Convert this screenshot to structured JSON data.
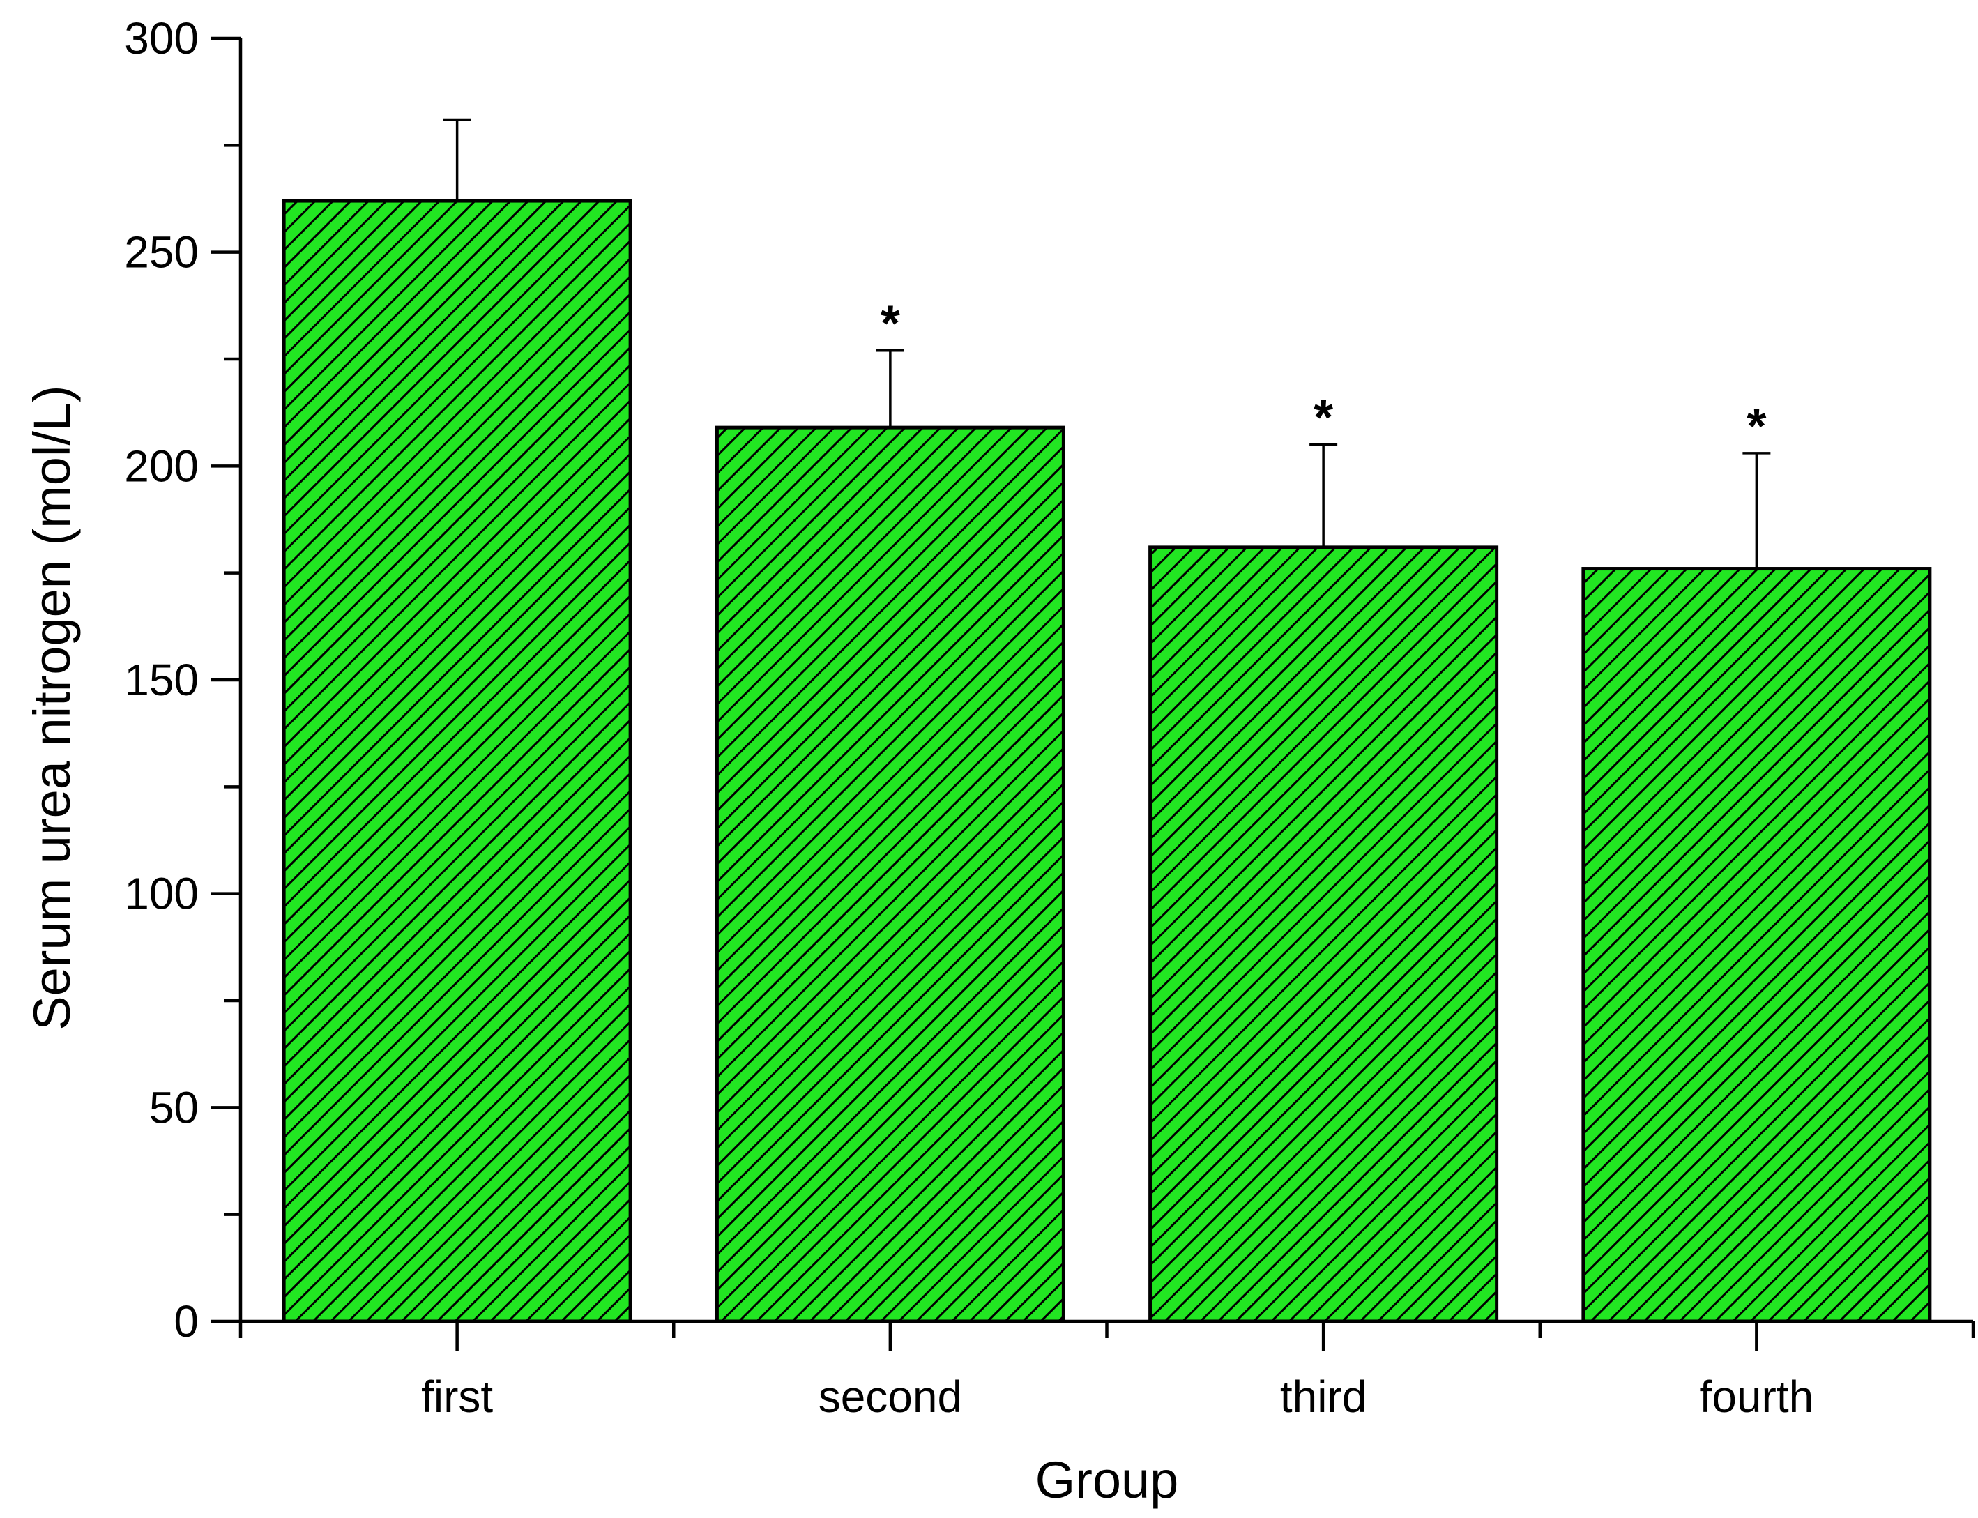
{
  "chart_data": {
    "type": "bar",
    "categories": [
      "first",
      "second",
      "third",
      "fourth"
    ],
    "values": [
      262,
      209,
      181,
      176
    ],
    "error_upper": [
      281,
      227,
      205,
      203
    ],
    "annotations": [
      "",
      "*",
      "*",
      "*"
    ],
    "xlabel": "Group",
    "ylabel": "Serum urea nitrogen (mol/L)",
    "ylim": [
      0,
      300
    ],
    "yticks": [
      0,
      50,
      100,
      150,
      200,
      250,
      300
    ],
    "ytick_labels": [
      "0",
      "50",
      "100",
      "150",
      "200",
      "250",
      "300"
    ],
    "minor_ytick_step": 25,
    "grid": false,
    "bar_fill": "#22e622",
    "hatch": "diagonal",
    "hatch_color": "#000000"
  }
}
